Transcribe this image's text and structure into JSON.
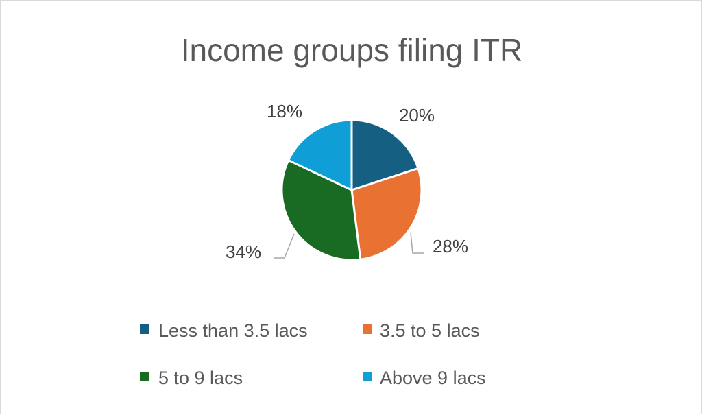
{
  "chart_data": {
    "type": "pie",
    "title": "Income groups filing ITR",
    "categories": [
      "Less than 3.5 lacs",
      "3.5 to 5 lacs",
      "5 to 9 lacs",
      "Above 9 lacs"
    ],
    "values": [
      20,
      28,
      34,
      18
    ],
    "data_labels": [
      "20%",
      "28%",
      "34%",
      "18%"
    ],
    "colors": [
      "#156082",
      "#E97132",
      "#196B24",
      "#0F9ED5"
    ],
    "legend_position": "bottom",
    "start_angle": "12 o'clock",
    "direction": "clockwise"
  }
}
